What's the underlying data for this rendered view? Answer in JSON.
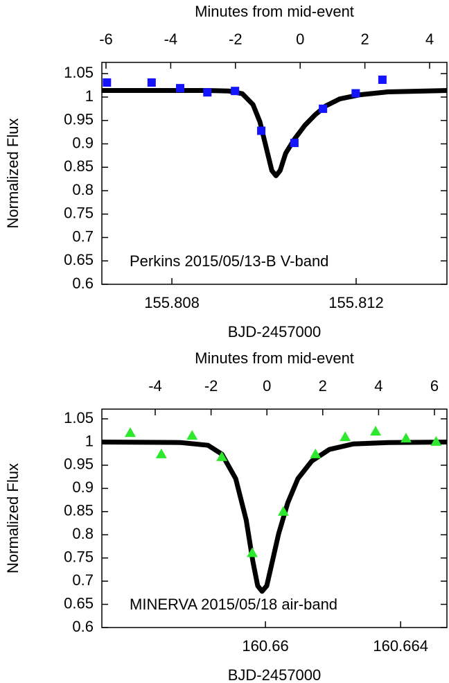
{
  "chart_data": [
    {
      "type": "scatter",
      "x2label": "Minutes from mid-event",
      "xlabel": "BJD-2457000",
      "ylabel": "Normalized Flux",
      "annotation": "Perkins 2015/05/13-B V-band",
      "xlim": [
        155.80648,
        155.81397
      ],
      "xticks": [
        155.808,
        155.812
      ],
      "x2lim": [
        -6.128,
        4.535
      ],
      "x2ticks": [
        -6,
        -4,
        -2,
        0,
        2,
        4
      ],
      "ylim": [
        0.6,
        1.074
      ],
      "yticks": [
        0.6,
        0.65,
        0.7,
        0.75,
        0.8,
        0.85,
        0.9,
        0.95,
        1,
        1.05
      ],
      "series": [
        {
          "color": "#000000",
          "style": "line",
          "x": [
            155.80648,
            155.80878,
            155.80923,
            155.80953,
            155.80976,
            155.80991,
            155.81006,
            155.81017,
            155.81026,
            155.81035,
            155.81047,
            155.81066,
            155.81089,
            155.81111,
            155.81134,
            155.81164,
            155.81209,
            155.81269,
            155.81397
          ],
          "values": [
            1.014,
            1.014,
            1.013,
            1.007,
            0.984,
            0.947,
            0.887,
            0.843,
            0.832,
            0.843,
            0.88,
            0.91,
            0.94,
            0.962,
            0.981,
            0.996,
            1.005,
            1.011,
            1.014
          ]
        },
        {
          "color": "#1414ff",
          "style": "square",
          "x": [
            155.80659,
            155.80756,
            155.80818,
            155.80877,
            155.80937,
            155.80994,
            155.81066,
            155.81128,
            155.81199,
            155.81257
          ],
          "values": [
            1.031,
            1.031,
            1.019,
            1.01,
            1.013,
            0.928,
            0.902,
            0.975,
            1.008,
            1.037
          ]
        }
      ]
    },
    {
      "type": "scatter",
      "x2label": "Minutes from mid-event",
      "xlabel": "BJD-2457000",
      "ylabel": "Normalized Flux",
      "annotation": "MINERVA 2015/05/18 air-band",
      "xlim": [
        160.65516,
        160.66537
      ],
      "xticks": [
        160.66,
        160.664
      ],
      "x2lim": [
        -5.911,
        6.447
      ],
      "x2ticks": [
        -4,
        -2,
        0,
        2,
        4,
        6
      ],
      "ylim": [
        0.6,
        1.071
      ],
      "yticks": [
        0.6,
        0.65,
        0.7,
        0.75,
        0.8,
        0.85,
        0.9,
        0.95,
        1,
        1.05
      ],
      "series": [
        {
          "color": "#000000",
          "style": "line",
          "x": [
            160.65516,
            160.65748,
            160.6583,
            160.65871,
            160.65912,
            160.65943,
            160.65963,
            160.65977,
            160.6599,
            160.66004,
            160.66018,
            160.66039,
            160.66066,
            160.66096,
            160.66137,
            160.66189,
            160.6626,
            160.66363,
            160.66537
          ],
          "values": [
            1.0,
            0.999,
            0.993,
            0.974,
            0.921,
            0.832,
            0.742,
            0.69,
            0.678,
            0.69,
            0.735,
            0.802,
            0.869,
            0.921,
            0.959,
            0.984,
            0.996,
            0.999,
            1.0
          ]
        },
        {
          "color": "#2ee82e",
          "style": "triangle",
          "x": [
            160.656,
            160.65692,
            160.65783,
            160.65871,
            160.65961,
            160.66053,
            160.66148,
            160.66236,
            160.66326,
            160.66416,
            160.66505
          ],
          "values": [
            1.02,
            0.974,
            1.014,
            0.968,
            0.761,
            0.85,
            0.974,
            1.011,
            1.023,
            1.008,
            1.001
          ]
        }
      ]
    }
  ]
}
